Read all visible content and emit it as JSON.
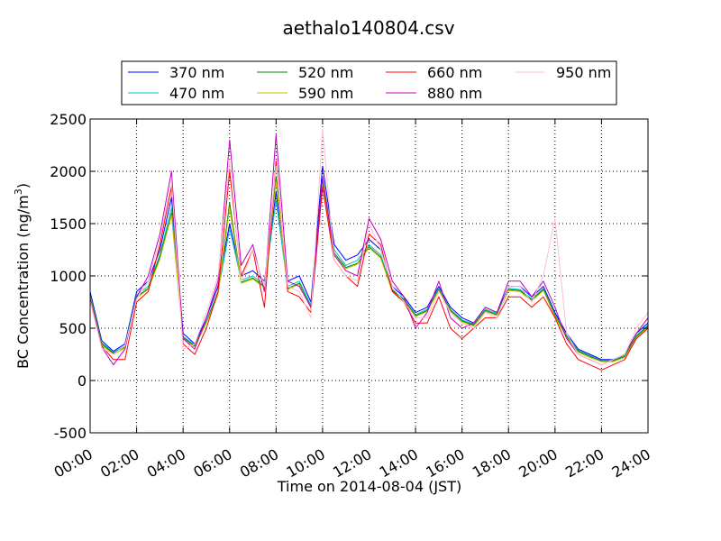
{
  "chart_data": {
    "type": "line",
    "title": "aethalo140804.csv",
    "xlabel": "Time on 2014-08-04 (JST)",
    "ylabel_main": "BC Concentration (ng/m",
    "ylabel_sup": "3",
    "ylabel_close": ")",
    "xlim": [
      "00:00",
      "24:00"
    ],
    "ylim": [
      -500,
      2500
    ],
    "grid": true,
    "grid_style": "dotted",
    "legend_position": "top-center",
    "x_ticks": [
      "00:00",
      "02:00",
      "04:00",
      "06:00",
      "08:00",
      "10:00",
      "12:00",
      "14:00",
      "16:00",
      "18:00",
      "20:00",
      "22:00",
      "24:00"
    ],
    "y_ticks": [
      "-500",
      "0",
      "500",
      "1000",
      "1500",
      "2000",
      "2500"
    ],
    "x_hours": [
      0,
      0.5,
      1,
      1.5,
      2,
      2.5,
      3,
      3.5,
      4,
      4.5,
      5,
      5.5,
      6,
      6.5,
      7,
      7.5,
      8,
      8.5,
      9,
      9.5,
      10,
      10.5,
      11,
      11.5,
      12,
      12.5,
      13,
      13.5,
      14,
      14.5,
      15,
      15.5,
      16,
      16.5,
      17,
      17.5,
      18,
      18.5,
      19,
      19.5,
      20,
      20.5,
      21,
      21.5,
      22,
      22.5,
      23,
      23.5,
      24
    ],
    "series": [
      {
        "name": "370 nm",
        "color": "#0000ff",
        "values": [
          850,
          380,
          280,
          350,
          850,
          950,
          1250,
          1750,
          450,
          350,
          600,
          900,
          1500,
          1000,
          1050,
          950,
          1800,
          950,
          1000,
          750,
          2050,
          1300,
          1150,
          1200,
          1350,
          1250,
          900,
          800,
          650,
          700,
          900,
          700,
          600,
          550,
          700,
          650,
          900,
          900,
          800,
          900,
          650,
          450,
          300,
          250,
          200,
          200,
          250,
          450,
          550
        ]
      },
      {
        "name": "470 nm",
        "color": "#00bfbf",
        "values": [
          820,
          360,
          270,
          330,
          820,
          900,
          1200,
          1650,
          420,
          340,
          570,
          850,
          1450,
          960,
          1000,
          920,
          1720,
          900,
          950,
          720,
          1950,
          1250,
          1100,
          1150,
          1300,
          1200,
          870,
          780,
          630,
          680,
          880,
          680,
          580,
          540,
          680,
          640,
          880,
          870,
          780,
          880,
          630,
          430,
          290,
          240,
          190,
          190,
          240,
          430,
          530
        ]
      },
      {
        "name": "520 nm",
        "color": "#008000",
        "values": [
          800,
          350,
          260,
          320,
          800,
          880,
          1180,
          1600,
          410,
          330,
          560,
          830,
          1700,
          940,
          980,
          900,
          1950,
          880,
          930,
          700,
          1900,
          1220,
          1080,
          1120,
          1280,
          1180,
          860,
          770,
          620,
          670,
          870,
          670,
          570,
          530,
          670,
          630,
          870,
          860,
          770,
          870,
          620,
          420,
          280,
          230,
          190,
          190,
          230,
          420,
          520
        ]
      },
      {
        "name": "590 nm",
        "color": "#bfbf00",
        "values": [
          790,
          340,
          250,
          310,
          790,
          870,
          1160,
          1580,
          400,
          320,
          550,
          820,
          1650,
          930,
          970,
          890,
          1900,
          870,
          920,
          690,
          1880,
          1200,
          1070,
          1110,
          1270,
          1170,
          850,
          760,
          610,
          660,
          860,
          660,
          560,
          520,
          660,
          620,
          860,
          850,
          760,
          860,
          610,
          410,
          270,
          220,
          180,
          180,
          220,
          410,
          510
        ]
      },
      {
        "name": "660 nm",
        "color": "#ff0000",
        "values": [
          780,
          330,
          200,
          200,
          750,
          850,
          1300,
          1850,
          350,
          250,
          500,
          850,
          2000,
          1000,
          1250,
          700,
          2100,
          850,
          800,
          650,
          1850,
          1150,
          1000,
          900,
          1400,
          1300,
          850,
          750,
          550,
          550,
          800,
          500,
          400,
          500,
          600,
          600,
          800,
          800,
          700,
          800,
          600,
          350,
          200,
          150,
          100,
          150,
          200,
          400,
          500
        ]
      },
      {
        "name": "880 nm",
        "color": "#bf00bf",
        "values": [
          770,
          320,
          150,
          300,
          800,
          1000,
          1400,
          2000,
          400,
          300,
          600,
          950,
          2300,
          1100,
          1300,
          850,
          2350,
          950,
          900,
          700,
          1950,
          1200,
          1050,
          1000,
          1550,
          1350,
          950,
          800,
          500,
          650,
          950,
          600,
          500,
          550,
          700,
          650,
          950,
          950,
          800,
          950,
          700,
          400,
          250,
          200,
          150,
          200,
          250,
          450,
          600
        ]
      },
      {
        "name": "950 nm",
        "color": "#ffc0cb",
        "values": [
          760,
          310,
          250,
          330,
          780,
          950,
          1350,
          1900,
          300,
          350,
          650,
          1000,
          2100,
          950,
          1250,
          900,
          2050,
          900,
          850,
          600,
          2400,
          1150,
          1000,
          950,
          1500,
          1250,
          900,
          750,
          600,
          600,
          850,
          650,
          550,
          500,
          650,
          600,
          900,
          900,
          750,
          1000,
          1550,
          450,
          250,
          200,
          150,
          200,
          250,
          500,
          650
        ]
      }
    ]
  }
}
